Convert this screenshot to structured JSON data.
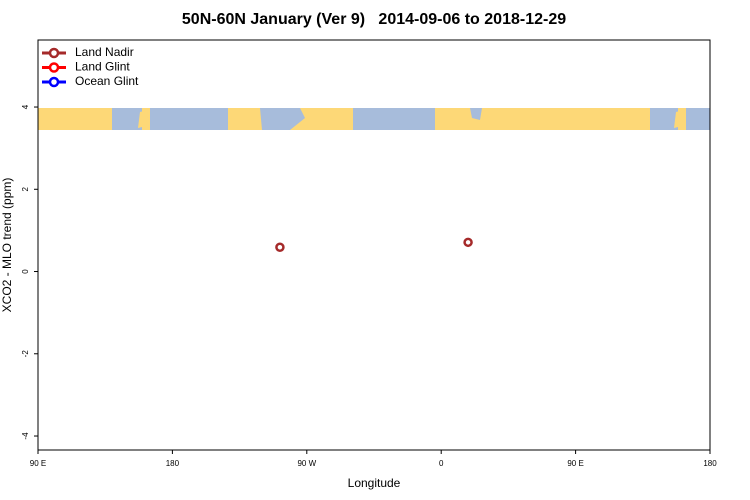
{
  "chart_data": {
    "type": "scatter",
    "title": "50N-60N January (Ver 9)   2014-09-06 to 2018-12-29",
    "x_label": "Longitude",
    "y_label": "XCO2 - MLO trend (ppm)",
    "xlim": [
      90,
      540
    ],
    "ylim": [
      -4.34,
      5.63
    ],
    "xticks": [
      {
        "value": 90,
        "label": "90 E"
      },
      {
        "value": 180,
        "label": "180"
      },
      {
        "value": 270,
        "label": "90 W"
      },
      {
        "value": 360,
        "label": "0"
      },
      {
        "value": 450,
        "label": "90 E"
      },
      {
        "value": 540,
        "label": "180"
      }
    ],
    "yticks": [
      -4,
      -2,
      0,
      2,
      4
    ],
    "legend": "top-left",
    "series": [
      {
        "name": "Land Nadir",
        "color": "#a52a2a",
        "x": [
          252,
          378
        ],
        "values": [
          0.59,
          0.71
        ]
      },
      {
        "name": "Land Glint",
        "color": "#ff0000",
        "x": [],
        "values": []
      },
      {
        "name": "Ocean Glint",
        "color": "#0000ff",
        "x": [],
        "values": []
      }
    ]
  }
}
